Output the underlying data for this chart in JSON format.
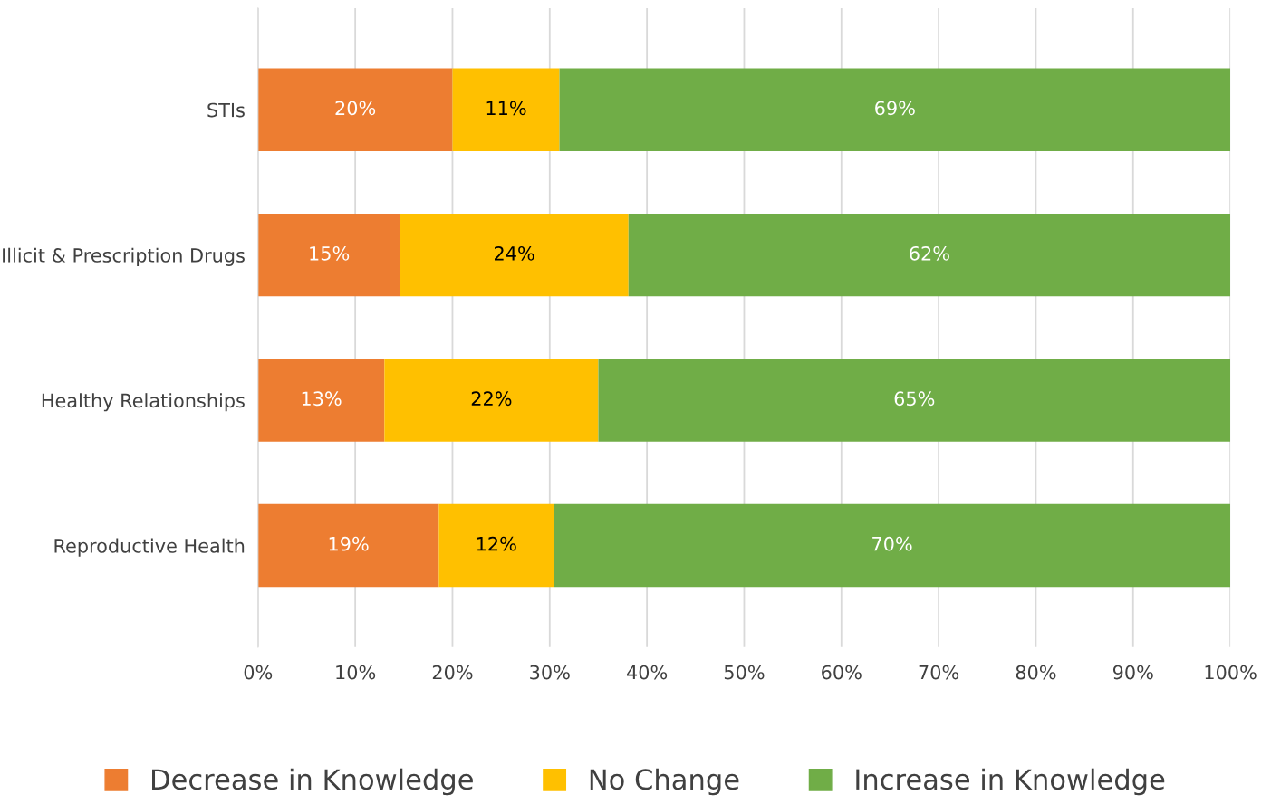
{
  "chart_data": {
    "type": "bar",
    "orientation": "horizontal",
    "stacked": true,
    "categories": [
      "STIs",
      "Illicit & Prescription Drugs",
      "Healthy Relationships",
      "Reproductive Health"
    ],
    "series": [
      {
        "name": "Decrease in Knowledge",
        "color": "#ed7d31",
        "values": [
          20,
          14.6,
          13,
          18.6
        ],
        "value_labels": [
          "20%",
          "15%",
          "13%",
          "19%"
        ]
      },
      {
        "name": "No Change",
        "color": "#ffc000",
        "values": [
          11,
          23.5,
          22,
          11.8
        ],
        "value_labels": [
          "11%",
          "24%",
          "22%",
          "12%"
        ]
      },
      {
        "name": "Increase in Knowledge",
        "color": "#70ad47",
        "values": [
          69,
          61.9,
          65,
          69.6
        ],
        "value_labels": [
          "69%",
          "62%",
          "65%",
          "70%"
        ]
      }
    ],
    "xlim": [
      0,
      100
    ],
    "xticks": [
      {
        "value": 0,
        "label": "0%"
      },
      {
        "value": 10,
        "label": "10%"
      },
      {
        "value": 20,
        "label": "20%"
      },
      {
        "value": 30,
        "label": "30%"
      },
      {
        "value": 40,
        "label": "40%"
      },
      {
        "value": 50,
        "label": "50%"
      },
      {
        "value": 60,
        "label": "60%"
      },
      {
        "value": 70,
        "label": "70%"
      },
      {
        "value": 80,
        "label": "80%"
      },
      {
        "value": 90,
        "label": "90%"
      },
      {
        "value": 100,
        "label": "100%"
      }
    ],
    "grid": "x",
    "legend": "bottom"
  }
}
